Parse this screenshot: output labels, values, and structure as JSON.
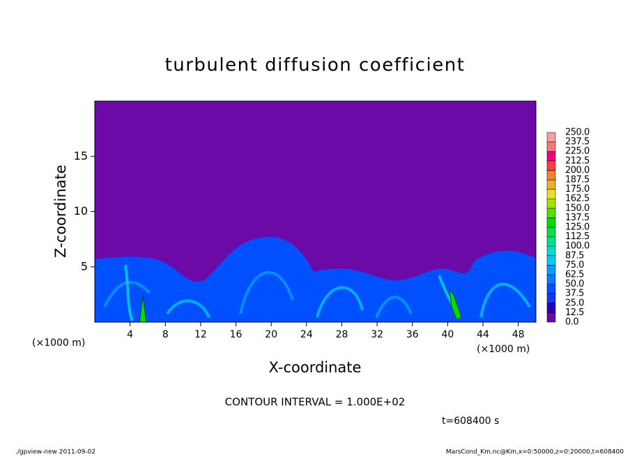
{
  "chart_data": {
    "type": "contour",
    "title": "turbulent diffusion coefficient",
    "xlabel": "X-coordinate",
    "ylabel": "Z-coordinate",
    "xunit_left": "(×1000 m)",
    "xunit_right": "(×1000 m)",
    "xlim": [
      0,
      50
    ],
    "ylim": [
      0,
      20
    ],
    "xticks": [
      4,
      8,
      12,
      16,
      20,
      24,
      28,
      32,
      36,
      40,
      44,
      48
    ],
    "yticks": [
      5,
      10,
      15
    ],
    "background_color": "#6c0aa8",
    "levels": [
      {
        "value": 0,
        "label": "0.0"
      },
      12.5,
      {
        "value": 25,
        "label": "25.0"
      },
      37.5,
      {
        "value": 50,
        "label": "50.0"
      },
      62.5,
      {
        "value": 75,
        "label": "75.0"
      },
      87.5,
      {
        "value": 100,
        "label": "100.0"
      },
      112.5,
      {
        "value": 125,
        "label": "125.0"
      },
      137.5,
      {
        "value": 150,
        "label": "150.0"
      },
      162.5,
      {
        "value": 175,
        "label": "175.0"
      },
      187.5,
      {
        "value": 200,
        "label": "200.0"
      },
      212.5,
      {
        "value": 225,
        "label": "225.0"
      },
      237.5,
      {
        "value": 250,
        "label": "250.0"
      }
    ],
    "level_colors": [
      "#6c0aa8",
      "#2a00c0",
      "#1e32f0",
      "#0050ff",
      "#0a78ff",
      "#00a0ff",
      "#00c8ff",
      "#00dcd2",
      "#00e08c",
      "#00e050",
      "#00dc00",
      "#50e000",
      "#a0e600",
      "#e6dc32",
      "#e6af2d",
      "#f08228",
      "#fa3c3c",
      "#f00082",
      "#f07878",
      "#f5a0a0"
    ],
    "contour_interval": "CONTOUR INTERVAL = 1.000E+02",
    "time_label": "t=608400 s",
    "footer_left": "./gpview-new  2011-09-02",
    "footer_right": "MarsCond_Km.nc@Km,x=0:50000,z=0:20000,t=608400"
  }
}
